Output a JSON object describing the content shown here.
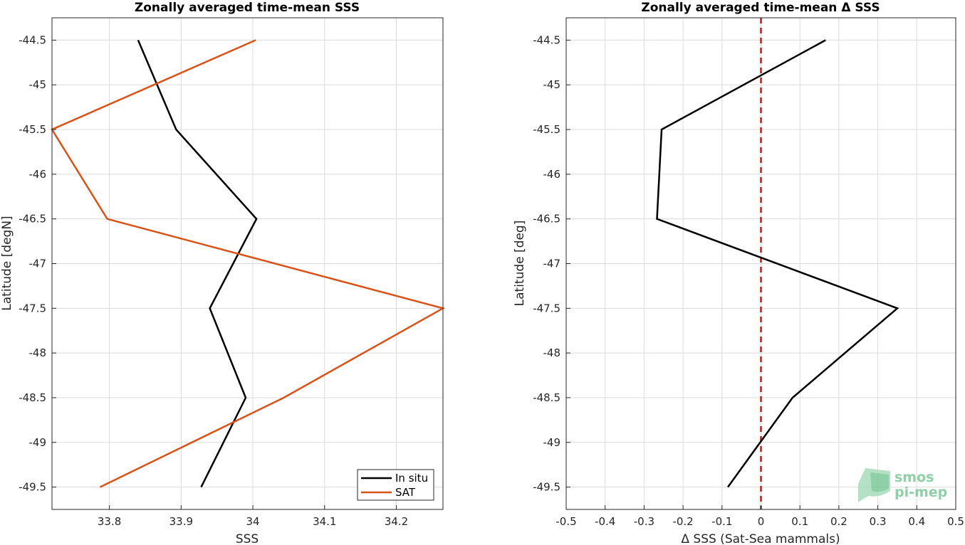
{
  "chart_data": [
    {
      "type": "line",
      "title": "Zonally averaged time-mean SSS",
      "xlabel": "SSS",
      "ylabel": "Latitude [degN]",
      "xlim": [
        33.72,
        34.265
      ],
      "ylim": [
        -49.75,
        -44.25
      ],
      "xticks": [
        33.8,
        33.9,
        34,
        34.1,
        34.2
      ],
      "xtick_labels": [
        "33.8",
        "33.9",
        "34",
        "34.1",
        "34.2"
      ],
      "yticks": [
        -44.5,
        -45,
        -45.5,
        -46,
        -46.5,
        -47,
        -47.5,
        -48,
        -48.5,
        -49,
        -49.5
      ],
      "ytick_labels": [
        "-44.5",
        "-45",
        "-45.5",
        "-46",
        "-46.5",
        "-47",
        "-47.5",
        "-48",
        "-48.5",
        "-49",
        "-49.5"
      ],
      "grid": true,
      "legend_position": "bottom-right",
      "series": [
        {
          "name": "In situ",
          "color": "#000000",
          "x": [
            33.84,
            33.893,
            34.005,
            33.94,
            33.99,
            33.928
          ],
          "y": [
            -44.5,
            -45.5,
            -46.5,
            -47.5,
            -48.5,
            -49.5
          ]
        },
        {
          "name": "SAT",
          "color": "#d95319",
          "x": [
            34.004,
            33.72,
            33.797,
            34.265,
            34.043,
            33.787
          ],
          "y": [
            -44.5,
            -45.5,
            -46.5,
            -47.5,
            -48.5,
            -49.5
          ]
        }
      ]
    },
    {
      "type": "line",
      "title": "Zonally averaged time-mean Δ SSS",
      "xlabel": "Δ SSS (Sat-Sea mammals)",
      "ylabel": "Latitude [deg]",
      "xlim": [
        -0.5,
        0.5
      ],
      "ylim": [
        -49.75,
        -44.25
      ],
      "xticks": [
        -0.5,
        -0.4,
        -0.3,
        -0.2,
        -0.1,
        0,
        0.1,
        0.2,
        0.3,
        0.4,
        0.5
      ],
      "xtick_labels": [
        "-0.5",
        "-0.4",
        "-0.3",
        "-0.2",
        "-0.1",
        "0",
        "0.1",
        "0.2",
        "0.3",
        "0.4",
        "0.5"
      ],
      "yticks": [
        -44.5,
        -45,
        -45.5,
        -46,
        -46.5,
        -47,
        -47.5,
        -48,
        -48.5,
        -49,
        -49.5
      ],
      "ytick_labels": [
        "-44.5",
        "-45",
        "-45.5",
        "-46",
        "-46.5",
        "-47",
        "-47.5",
        "-48",
        "-48.5",
        "-49",
        "-49.5"
      ],
      "grid": true,
      "reference_line": {
        "x": 0,
        "color": "#ff0000",
        "style": "dashed"
      },
      "series": [
        {
          "color": "#000000",
          "x": [
            0.166,
            -0.255,
            -0.267,
            0.35,
            0.081,
            -0.085
          ],
          "y": [
            -44.5,
            -45.5,
            -46.5,
            -47.5,
            -48.5,
            -49.5
          ]
        }
      ]
    }
  ],
  "logo": {
    "line1": "smos",
    "line2": "pi-mep",
    "color": "#7cc89a"
  }
}
